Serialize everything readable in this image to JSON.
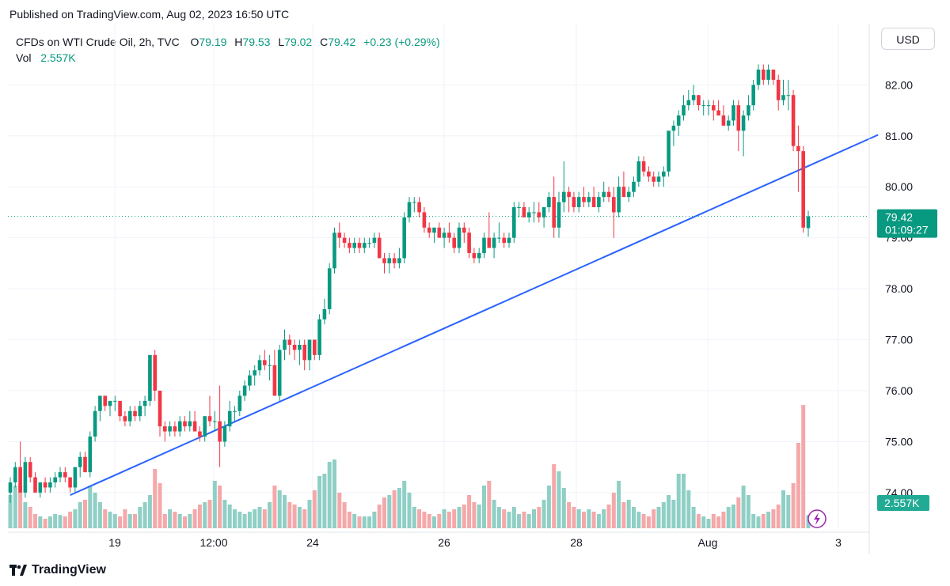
{
  "header": {
    "published": "Published on TradingView.com, Aug 02, 2023 16:50 UTC"
  },
  "legend": {
    "symbol": "CFDs on WTI Crude Oil, 2h, TVC",
    "open_label": "O",
    "open": "79.19",
    "high_label": "H",
    "high": "79.53",
    "low_label": "L",
    "low": "79.02",
    "close_label": "C",
    "close": "79.42",
    "change": "+0.23 (+0.29%)",
    "vol_label": "Vol",
    "vol": "2.557K"
  },
  "currency_button": "USD",
  "footer": {
    "brand": "TradingView"
  },
  "colors": {
    "up": "#089981",
    "down": "#f23645",
    "up_vol": "#8fcfc5",
    "down_vol": "#f5a8aa",
    "trendline": "#2962ff"
  },
  "chart_data": {
    "type": "candlestick",
    "y_ticks": [
      "74.00",
      "75.00",
      "76.00",
      "77.00",
      "78.00",
      "79.00",
      "80.00",
      "81.00",
      "82.00"
    ],
    "x_ticks": [
      "19",
      "12:00",
      "24",
      "26",
      "28",
      "Aug",
      "3"
    ],
    "ylim": [
      73.3,
      83.2
    ],
    "grid": true,
    "last_price": {
      "value": 79.42,
      "label": "79.42",
      "countdown": "01:09:27"
    },
    "last_volume": {
      "label": "2.557K"
    },
    "trendline": {
      "from": {
        "bar": 12,
        "price": 73.95
      },
      "to": {
        "bar": 174,
        "price": 81.02
      }
    },
    "candles_ohlc_v": [
      [
        74.0,
        74.3,
        73.8,
        74.2,
        70
      ],
      [
        74.2,
        74.6,
        74.1,
        74.5,
        90
      ],
      [
        74.5,
        75.0,
        74.3,
        74.0,
        90
      ],
      [
        74.0,
        74.7,
        73.9,
        74.6,
        55
      ],
      [
        74.6,
        74.7,
        74.2,
        74.3,
        45
      ],
      [
        74.3,
        74.4,
        74.0,
        74.0,
        30
      ],
      [
        74.0,
        74.2,
        73.9,
        74.2,
        25
      ],
      [
        74.2,
        74.3,
        74.0,
        74.1,
        20
      ],
      [
        74.1,
        74.3,
        74.0,
        74.2,
        25
      ],
      [
        74.2,
        74.4,
        74.1,
        74.3,
        30
      ],
      [
        74.3,
        74.5,
        74.2,
        74.4,
        28
      ],
      [
        74.4,
        74.5,
        74.2,
        74.3,
        25
      ],
      [
        74.3,
        74.3,
        74.0,
        74.1,
        35
      ],
      [
        74.1,
        74.5,
        74.0,
        74.5,
        40
      ],
      [
        74.5,
        74.8,
        74.3,
        74.7,
        55
      ],
      [
        74.7,
        74.8,
        74.4,
        74.4,
        60
      ],
      [
        74.4,
        75.2,
        74.3,
        75.1,
        90
      ],
      [
        75.1,
        75.7,
        75.0,
        75.6,
        75
      ],
      [
        75.6,
        75.9,
        75.4,
        75.9,
        55
      ],
      [
        75.9,
        75.9,
        75.6,
        75.7,
        40
      ],
      [
        75.7,
        75.8,
        75.5,
        75.8,
        35
      ],
      [
        75.8,
        75.9,
        75.6,
        75.8,
        30
      ],
      [
        75.8,
        75.8,
        75.4,
        75.5,
        25
      ],
      [
        75.5,
        75.6,
        75.3,
        75.4,
        40
      ],
      [
        75.4,
        75.7,
        75.3,
        75.6,
        30
      ],
      [
        75.6,
        75.7,
        75.4,
        75.5,
        30
      ],
      [
        75.5,
        75.8,
        75.4,
        75.7,
        45
      ],
      [
        75.7,
        75.9,
        75.5,
        75.8,
        55
      ],
      [
        75.8,
        76.7,
        75.7,
        76.7,
        70
      ],
      [
        76.7,
        76.8,
        75.8,
        76.0,
        125
      ],
      [
        76.0,
        76.0,
        75.1,
        75.3,
        95
      ],
      [
        75.3,
        75.4,
        75.0,
        75.2,
        30
      ],
      [
        75.2,
        75.4,
        75.1,
        75.3,
        40
      ],
      [
        75.3,
        75.4,
        75.1,
        75.2,
        35
      ],
      [
        75.2,
        75.5,
        75.1,
        75.4,
        30
      ],
      [
        75.4,
        75.5,
        75.2,
        75.3,
        25
      ],
      [
        75.3,
        75.6,
        75.2,
        75.4,
        30
      ],
      [
        75.4,
        75.6,
        75.3,
        75.2,
        40
      ],
      [
        75.2,
        75.3,
        75.0,
        75.1,
        50
      ],
      [
        75.1,
        75.5,
        75.0,
        75.5,
        55
      ],
      [
        75.5,
        75.9,
        75.3,
        75.4,
        60
      ],
      [
        75.4,
        75.6,
        75.2,
        75.4,
        100
      ],
      [
        75.4,
        76.1,
        74.5,
        75.0,
        90
      ],
      [
        75.0,
        75.4,
        74.9,
        75.3,
        60
      ],
      [
        75.3,
        75.8,
        75.2,
        75.6,
        50
      ],
      [
        75.6,
        75.7,
        75.4,
        75.6,
        40
      ],
      [
        75.6,
        76.0,
        75.5,
        75.9,
        35
      ],
      [
        75.9,
        76.2,
        75.8,
        76.1,
        30
      ],
      [
        76.1,
        76.4,
        76.0,
        76.3,
        35
      ],
      [
        76.3,
        76.5,
        76.1,
        76.4,
        40
      ],
      [
        76.4,
        76.7,
        76.3,
        76.6,
        45
      ],
      [
        76.6,
        76.8,
        76.4,
        76.5,
        40
      ],
      [
        76.5,
        76.7,
        76.2,
        76.5,
        55
      ],
      [
        76.5,
        76.8,
        75.9,
        75.9,
        90
      ],
      [
        75.9,
        76.9,
        75.8,
        76.8,
        80
      ],
      [
        76.8,
        77.2,
        76.6,
        77.0,
        70
      ],
      [
        77.0,
        77.1,
        76.7,
        76.9,
        55
      ],
      [
        76.9,
        77.0,
        76.6,
        76.8,
        50
      ],
      [
        76.8,
        77.0,
        76.5,
        76.9,
        45
      ],
      [
        76.9,
        77.0,
        76.4,
        76.6,
        40
      ],
      [
        76.6,
        77.0,
        76.4,
        77.0,
        60
      ],
      [
        77.0,
        77.0,
        76.6,
        76.7,
        80
      ],
      [
        76.7,
        77.5,
        76.6,
        77.4,
        110
      ],
      [
        77.4,
        77.8,
        77.3,
        77.6,
        115
      ],
      [
        77.6,
        78.5,
        77.5,
        78.4,
        140
      ],
      [
        78.4,
        79.2,
        78.3,
        79.1,
        145
      ],
      [
        79.1,
        79.3,
        78.8,
        79.0,
        75
      ],
      [
        79.0,
        79.1,
        78.8,
        78.9,
        55
      ],
      [
        78.9,
        79.0,
        78.7,
        78.8,
        35
      ],
      [
        78.8,
        79.0,
        78.7,
        78.9,
        30
      ],
      [
        78.9,
        79.0,
        78.7,
        78.8,
        25
      ],
      [
        78.8,
        79.0,
        78.7,
        78.9,
        25
      ],
      [
        78.9,
        79.0,
        78.8,
        78.9,
        25
      ],
      [
        78.9,
        79.1,
        78.8,
        79.0,
        35
      ],
      [
        79.0,
        79.1,
        78.7,
        78.6,
        50
      ],
      [
        78.6,
        78.7,
        78.3,
        78.5,
        65
      ],
      [
        78.5,
        78.7,
        78.3,
        78.6,
        70
      ],
      [
        78.6,
        78.7,
        78.4,
        78.5,
        80
      ],
      [
        78.5,
        78.8,
        78.4,
        78.6,
        85
      ],
      [
        78.6,
        79.5,
        78.5,
        79.4,
        100
      ],
      [
        79.4,
        79.8,
        79.3,
        79.7,
        75
      ],
      [
        79.7,
        79.8,
        79.5,
        79.7,
        45
      ],
      [
        79.7,
        79.8,
        79.4,
        79.5,
        40
      ],
      [
        79.5,
        79.6,
        79.1,
        79.2,
        35
      ],
      [
        79.2,
        79.3,
        79.0,
        79.1,
        30
      ],
      [
        79.1,
        79.2,
        78.9,
        79.2,
        25
      ],
      [
        79.2,
        79.3,
        79.0,
        79.0,
        30
      ],
      [
        79.0,
        79.2,
        78.8,
        79.1,
        40
      ],
      [
        79.1,
        79.3,
        78.9,
        79.0,
        35
      ],
      [
        79.0,
        79.1,
        78.7,
        78.8,
        40
      ],
      [
        78.8,
        79.3,
        78.7,
        79.2,
        45
      ],
      [
        79.2,
        79.3,
        78.9,
        79.1,
        50
      ],
      [
        79.1,
        79.2,
        78.6,
        78.7,
        70
      ],
      [
        78.7,
        78.8,
        78.5,
        78.6,
        55
      ],
      [
        78.6,
        78.8,
        78.5,
        78.7,
        50
      ],
      [
        78.7,
        79.1,
        78.6,
        79.0,
        90
      ],
      [
        79.0,
        79.5,
        78.9,
        78.8,
        100
      ],
      [
        78.8,
        79.1,
        78.6,
        79.0,
        60
      ],
      [
        79.0,
        79.3,
        78.9,
        79.0,
        45
      ],
      [
        79.0,
        79.1,
        78.8,
        78.9,
        40
      ],
      [
        78.9,
        79.1,
        78.8,
        79.0,
        35
      ],
      [
        79.0,
        79.7,
        78.9,
        79.6,
        45
      ],
      [
        79.6,
        79.7,
        79.4,
        79.6,
        30
      ],
      [
        79.6,
        79.7,
        79.4,
        79.4,
        35
      ],
      [
        79.4,
        79.6,
        79.3,
        79.5,
        30
      ],
      [
        79.5,
        79.7,
        79.3,
        79.5,
        40
      ],
      [
        79.5,
        79.7,
        79.3,
        79.4,
        45
      ],
      [
        79.4,
        79.6,
        79.2,
        79.6,
        60
      ],
      [
        79.6,
        79.9,
        79.5,
        79.8,
        90
      ],
      [
        79.8,
        80.2,
        79.0,
        79.2,
        135
      ],
      [
        79.2,
        79.9,
        79.0,
        79.7,
        120
      ],
      [
        79.7,
        80.5,
        79.5,
        79.9,
        85
      ],
      [
        79.9,
        80.0,
        79.5,
        79.8,
        55
      ],
      [
        79.8,
        79.9,
        79.5,
        79.6,
        45
      ],
      [
        79.6,
        79.9,
        79.5,
        79.8,
        40
      ],
      [
        79.8,
        80.0,
        79.6,
        79.7,
        35
      ],
      [
        79.7,
        79.9,
        79.6,
        79.8,
        40
      ],
      [
        79.8,
        80.0,
        79.6,
        79.6,
        35
      ],
      [
        79.6,
        79.9,
        79.5,
        79.8,
        30
      ],
      [
        79.8,
        80.1,
        79.7,
        79.9,
        40
      ],
      [
        79.9,
        80.0,
        79.7,
        79.8,
        50
      ],
      [
        79.8,
        80.0,
        79.0,
        79.5,
        75
      ],
      [
        79.5,
        80.2,
        79.4,
        80.0,
        100
      ],
      [
        80.0,
        80.3,
        79.8,
        79.8,
        55
      ],
      [
        79.8,
        80.0,
        79.7,
        79.9,
        60
      ],
      [
        79.9,
        80.2,
        79.8,
        80.1,
        45
      ],
      [
        80.1,
        80.6,
        80.0,
        80.5,
        35
      ],
      [
        80.5,
        80.6,
        80.2,
        80.3,
        30
      ],
      [
        80.3,
        80.4,
        80.1,
        80.2,
        25
      ],
      [
        80.2,
        80.3,
        80.0,
        80.1,
        40
      ],
      [
        80.1,
        80.3,
        80.0,
        80.2,
        45
      ],
      [
        80.2,
        80.4,
        80.0,
        80.3,
        55
      ],
      [
        80.3,
        81.1,
        80.2,
        81.1,
        70
      ],
      [
        81.1,
        81.3,
        80.8,
        81.2,
        60
      ],
      [
        81.2,
        81.5,
        81.0,
        81.4,
        115
      ],
      [
        81.4,
        81.8,
        81.3,
        81.6,
        115
      ],
      [
        81.6,
        81.9,
        81.5,
        81.7,
        80
      ],
      [
        81.7,
        82.0,
        81.6,
        81.8,
        45
      ],
      [
        81.8,
        81.8,
        81.5,
        81.6,
        30
      ],
      [
        81.6,
        81.7,
        81.4,
        81.6,
        25
      ],
      [
        81.6,
        81.7,
        81.4,
        81.6,
        20
      ],
      [
        81.6,
        81.7,
        81.3,
        81.5,
        30
      ],
      [
        81.5,
        81.7,
        81.4,
        81.4,
        25
      ],
      [
        81.4,
        81.6,
        81.2,
        81.2,
        35
      ],
      [
        81.2,
        81.4,
        81.1,
        81.3,
        45
      ],
      [
        81.3,
        81.7,
        81.2,
        81.6,
        50
      ],
      [
        81.6,
        81.7,
        80.7,
        81.1,
        65
      ],
      [
        81.1,
        81.5,
        80.6,
        81.4,
        90
      ],
      [
        81.4,
        81.8,
        81.3,
        81.6,
        70
      ],
      [
        81.6,
        82.1,
        81.5,
        82.0,
        30
      ],
      [
        82.0,
        82.4,
        81.9,
        82.3,
        25
      ],
      [
        82.3,
        82.4,
        82.0,
        82.1,
        30
      ],
      [
        82.1,
        82.4,
        82.0,
        82.3,
        35
      ],
      [
        82.3,
        82.3,
        82.0,
        82.1,
        40
      ],
      [
        82.1,
        82.2,
        81.5,
        81.7,
        50
      ],
      [
        81.7,
        82.1,
        81.6,
        81.8,
        80
      ],
      [
        81.8,
        82.1,
        81.5,
        81.8,
        70
      ],
      [
        81.8,
        81.9,
        80.7,
        80.8,
        95
      ],
      [
        80.8,
        81.2,
        79.9,
        80.7,
        180
      ],
      [
        80.7,
        80.8,
        79.1,
        79.2,
        260
      ],
      [
        79.19,
        79.53,
        79.02,
        79.42,
        28
      ]
    ]
  }
}
